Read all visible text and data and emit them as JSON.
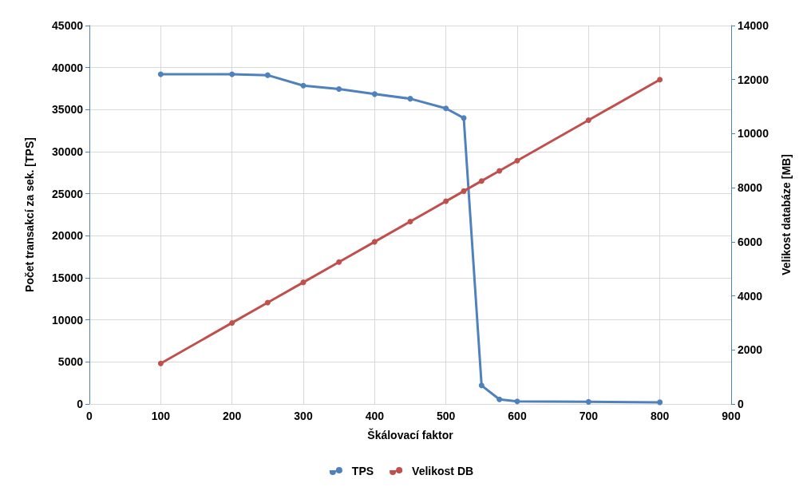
{
  "chart_data": {
    "type": "line",
    "xlabel": "Škálovací faktor",
    "ylabel": "Počet transakcí za sek. [TPS]",
    "y2label": "Velikost databáze [MB]",
    "x": [
      100,
      200,
      250,
      300,
      350,
      400,
      450,
      500,
      525,
      550,
      575,
      600,
      700,
      800
    ],
    "series": [
      {
        "name": "TPS",
        "color": "#4f81bd",
        "values": [
          39200,
          39200,
          39100,
          37850,
          37450,
          36850,
          36300,
          35150,
          34000,
          2200,
          550,
          300,
          250,
          200
        ]
      },
      {
        "name": "Velikost DB",
        "color": "#c0504d",
        "axis": "y2",
        "values": [
          1500,
          3000,
          3750,
          4500,
          5250,
          6000,
          6750,
          7500,
          7875,
          8250,
          8625,
          9000,
          10500,
          12000
        ]
      }
    ],
    "xlim": [
      0,
      900
    ],
    "xticks": [
      0,
      100,
      200,
      300,
      400,
      500,
      600,
      700,
      800,
      900
    ],
    "ylim": [
      0,
      45000
    ],
    "yticks": [
      0,
      5000,
      10000,
      15000,
      20000,
      25000,
      30000,
      35000,
      40000,
      45000
    ],
    "y2lim": [
      0,
      14000
    ],
    "y2ticks": [
      0,
      2000,
      4000,
      6000,
      8000,
      10000,
      12000,
      14000
    ],
    "grid": true,
    "legend": "bottom",
    "marker": "circle",
    "line_style": "solid"
  }
}
